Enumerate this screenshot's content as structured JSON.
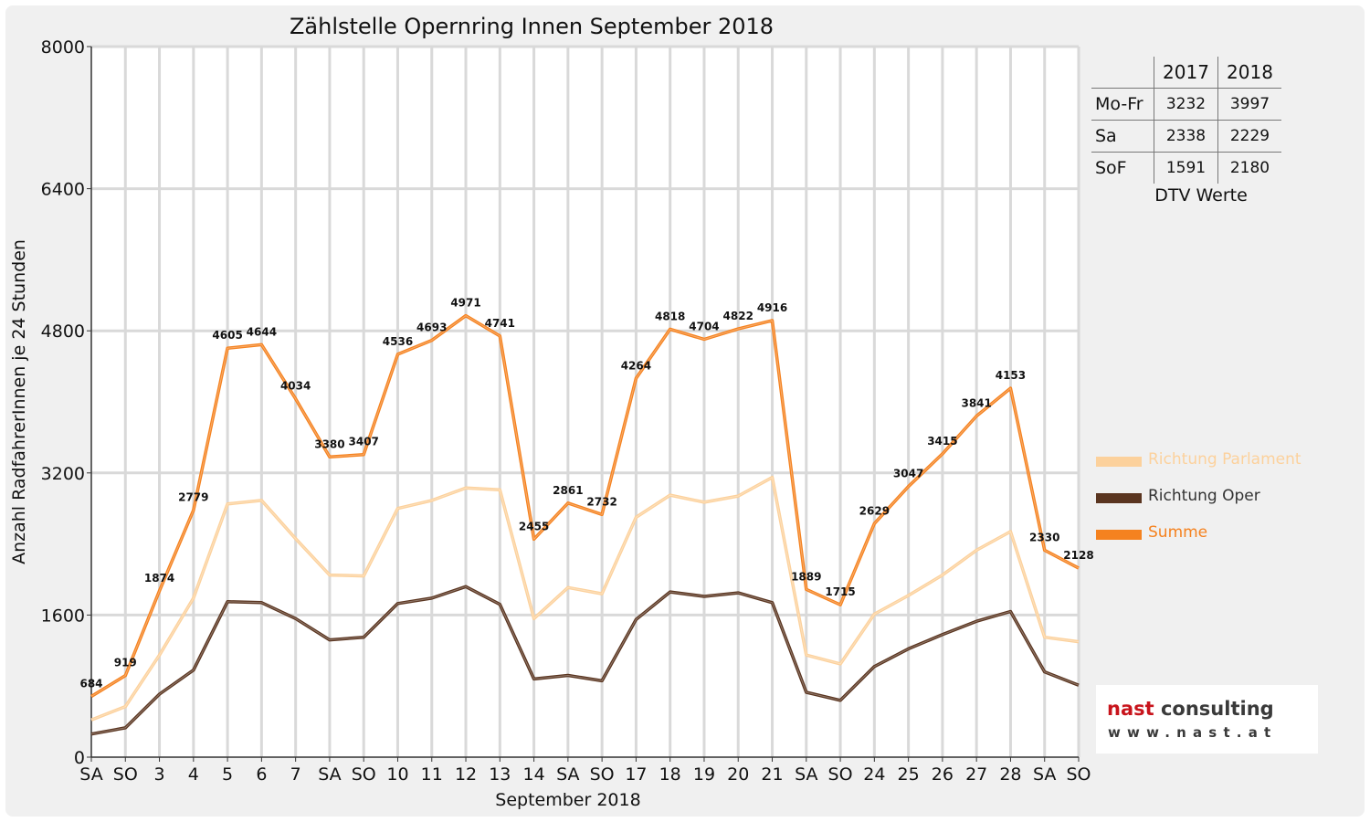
{
  "chart_data": {
    "type": "line",
    "title": "Zählstelle Opernring Innen September 2018",
    "xlabel": "September 2018",
    "ylabel": "Anzahl RadfahrerInnen je 24 Stunden",
    "ylim": [
      0,
      8000
    ],
    "yticks": [
      "0",
      "1600",
      "3200",
      "4800",
      "6400",
      "8000"
    ],
    "grid": true,
    "legend_position": "right",
    "categories": [
      "SA",
      "SO",
      "3",
      "4",
      "5",
      "6",
      "7",
      "SA",
      "SO",
      "10",
      "11",
      "12",
      "13",
      "14",
      "SA",
      "SO",
      "17",
      "18",
      "19",
      "20",
      "21",
      "SA",
      "SO",
      "24",
      "25",
      "26",
      "27",
      "28",
      "SA",
      "SO"
    ],
    "weekend_categories": [
      "SO"
    ],
    "series": [
      {
        "name": "Richtung Parlament",
        "color": "#fcd19c",
        "values": [
          420,
          570,
          1150,
          1790,
          2850,
          2890,
          2460,
          2050,
          2040,
          2800,
          2890,
          3030,
          3010,
          1560,
          1910,
          1840,
          2700,
          2950,
          2870,
          2940,
          3150,
          1150,
          1050,
          1610,
          1820,
          2050,
          2330,
          2540,
          1350,
          1300
        ]
      },
      {
        "name": "Richtung Oper",
        "color": "#5a3520",
        "values": [
          260,
          330,
          710,
          980,
          1750,
          1740,
          1560,
          1320,
          1350,
          1730,
          1790,
          1920,
          1720,
          880,
          920,
          860,
          1550,
          1860,
          1810,
          1850,
          1740,
          730,
          640,
          1020,
          1220,
          1380,
          1530,
          1640,
          960,
          810
        ]
      },
      {
        "name": "Summe",
        "color": "#f5821f",
        "values": [
          684,
          919,
          1874,
          2779,
          4605,
          4644,
          4034,
          3380,
          3407,
          4536,
          4693,
          4971,
          4741,
          2455,
          2861,
          2732,
          4264,
          4818,
          4704,
          4822,
          4916,
          1889,
          1715,
          2629,
          3047,
          3415,
          3841,
          4153,
          2330,
          2128
        ],
        "labels": [
          "684",
          "919",
          "1874",
          "2779",
          "4605",
          "4644",
          "4034",
          "3380",
          "3407",
          "4536",
          "4693",
          "4971",
          "4741",
          "2455",
          "2861",
          "2732",
          "4264",
          "4818",
          "4704",
          "4822",
          "4916",
          "1889",
          "1715",
          "2629",
          "3047",
          "3415",
          "3841",
          "4153",
          "2330",
          "2128"
        ]
      }
    ]
  },
  "colors": {
    "weekend_label": "#e00000",
    "grid": "#d9d9d9",
    "plot_background": "#ffffff",
    "panel_background": "#f0f0f0"
  },
  "dtv_table": {
    "columns": [
      "2017",
      "2018"
    ],
    "rows": [
      {
        "label": "Mo-Fr",
        "v2017": "3232",
        "v2018": "3997"
      },
      {
        "label": "Sa",
        "v2017": "2338",
        "v2018": "2229"
      },
      {
        "label": "SoF",
        "v2017": "1591",
        "v2018": "2180"
      }
    ],
    "caption": "DTV Werte"
  },
  "logo": {
    "name_part1": "nast",
    "name_part2": "consulting",
    "website": "www.nast.at"
  }
}
